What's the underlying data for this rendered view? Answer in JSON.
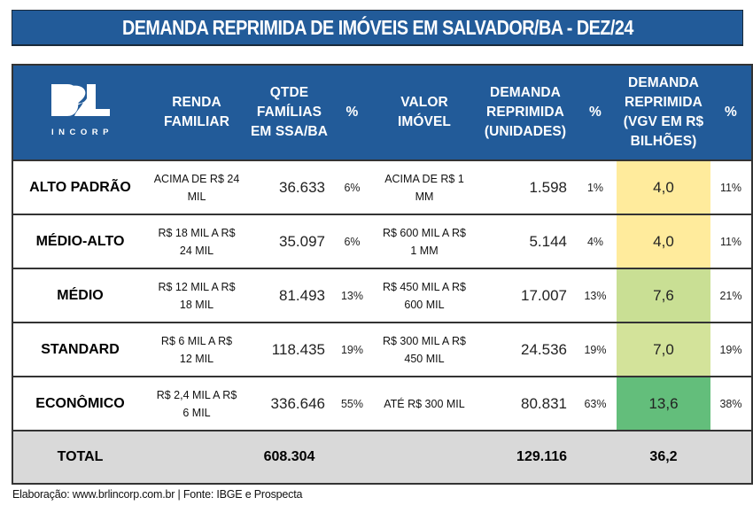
{
  "title": "DEMANDA REPRIMIDA DE IMÓVEIS EM SALVADOR/BA - DEZ/24",
  "logo": {
    "mark": "BRL",
    "text": "INCORP",
    "icon": "brl-incorp-logo"
  },
  "colors": {
    "header_bg": "#225b99",
    "yellow": "#ffeb9c",
    "light_green": "#c9df94",
    "lighter_green": "#d3e39a",
    "green": "#63be7b",
    "total_bg": "#d9d9d9"
  },
  "headers": {
    "renda_familiar": [
      "RENDA",
      "FAMILIAR"
    ],
    "qtde_familias": [
      "QTDE",
      "FAMÍLIAS",
      "EM SSA/BA"
    ],
    "pct1": "%",
    "valor_imovel": [
      "VALOR",
      "IMÓVEL"
    ],
    "demanda_unidades": [
      "DEMANDA",
      "REPRIMIDA",
      "(UNIDADES)"
    ],
    "pct2": "%",
    "demanda_vgv": [
      "DEMANDA",
      "REPRIMIDA",
      "(VGV EM R$",
      "BILHÕES)"
    ],
    "pct3": "%"
  },
  "rows": [
    {
      "segment": "ALTO PADRÃO",
      "renda": [
        "ACIMA DE R$ 24",
        "MIL"
      ],
      "familias": "36.633",
      "pct_familias": "6%",
      "valor": [
        "ACIMA DE R$ 1",
        "MM"
      ],
      "unidades": "1.598",
      "pct_unidades": "1%",
      "vgv": "4,0",
      "vgv_color": "#ffeb9c",
      "pct_vgv": "11%"
    },
    {
      "segment": "MÉDIO-ALTO",
      "renda": [
        "R$ 18 MIL A R$",
        "24 MIL"
      ],
      "familias": "35.097",
      "pct_familias": "6%",
      "valor": [
        "R$ 600 MIL A R$",
        "1 MM"
      ],
      "unidades": "5.144",
      "pct_unidades": "4%",
      "vgv": "4,0",
      "vgv_color": "#ffeb9c",
      "pct_vgv": "11%"
    },
    {
      "segment": "MÉDIO",
      "renda": [
        "R$ 12 MIL A R$",
        "18 MIL"
      ],
      "familias": "81.493",
      "pct_familias": "13%",
      "valor": [
        "R$ 450 MIL A R$",
        "600 MIL"
      ],
      "unidades": "17.007",
      "pct_unidades": "13%",
      "vgv": "7,6",
      "vgv_color": "#c9df94",
      "pct_vgv": "21%"
    },
    {
      "segment": "STANDARD",
      "renda": [
        "R$ 6 MIL A R$",
        "12 MIL"
      ],
      "familias": "118.435",
      "pct_familias": "19%",
      "valor": [
        "R$ 300 MIL A R$",
        "450 MIL"
      ],
      "unidades": "24.536",
      "pct_unidades": "19%",
      "vgv": "7,0",
      "vgv_color": "#d3e39a",
      "pct_vgv": "19%"
    },
    {
      "segment": "ECONÔMICO",
      "renda": [
        "R$ 2,4 MIL A  R$",
        "6 MIL"
      ],
      "familias": "336.646",
      "pct_familias": "55%",
      "valor": [
        "ATÉ R$ 300 MIL"
      ],
      "unidades": "80.831",
      "pct_unidades": "63%",
      "vgv": "13,6",
      "vgv_color": "#63be7b",
      "pct_vgv": "38%"
    }
  ],
  "total": {
    "label": "TOTAL",
    "familias": "608.304",
    "unidades": "129.116",
    "vgv": "36,2"
  },
  "footer": "Elaboração: www.brlincorp.com.br | Fonte: IBGE e Prospecta"
}
